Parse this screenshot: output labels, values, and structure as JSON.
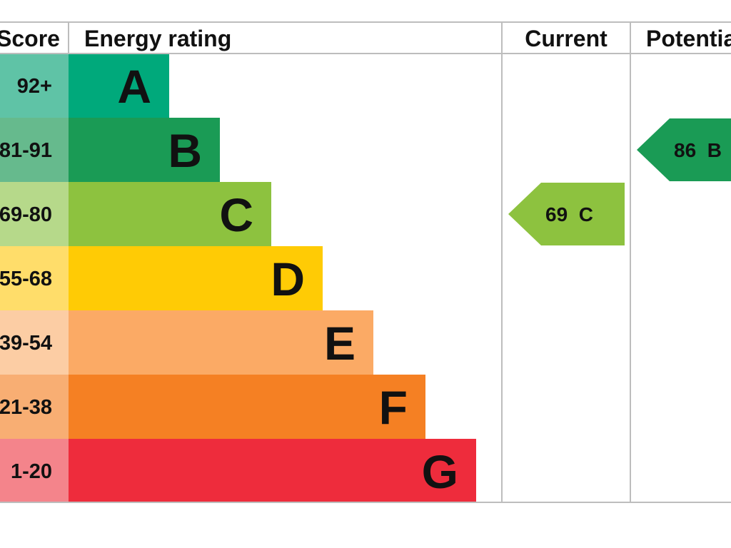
{
  "chart_data": {
    "type": "bar",
    "headers": {
      "score": "Score",
      "rating": "Energy rating",
      "current": "Current",
      "potential": "Potential"
    },
    "bands": [
      {
        "letter": "A",
        "score": "92+",
        "color": "#00A97B",
        "score_bg": "#5FC3A6"
      },
      {
        "letter": "B",
        "score": "81-91",
        "color": "#1A9B55",
        "score_bg": "#66BA8D"
      },
      {
        "letter": "C",
        "score": "69-80",
        "color": "#8DC23F",
        "score_bg": "#B6D98A"
      },
      {
        "letter": "D",
        "score": "55-68",
        "color": "#FFCB05",
        "score_bg": "#FFDD6A"
      },
      {
        "letter": "E",
        "score": "39-54",
        "color": "#FBAA65",
        "score_bg": "#FCCDA4"
      },
      {
        "letter": "F",
        "score": "21-38",
        "color": "#F58023",
        "score_bg": "#F8AE73"
      },
      {
        "letter": "G",
        "score": "1-20",
        "color": "#EE2C3C",
        "score_bg": "#F4848B"
      }
    ],
    "current": {
      "value": 69,
      "band": "C",
      "label": "69  C",
      "color": "#8DC23F"
    },
    "potential": {
      "value": 86,
      "band": "B",
      "label": "86  B",
      "color": "#1A9B55"
    }
  }
}
